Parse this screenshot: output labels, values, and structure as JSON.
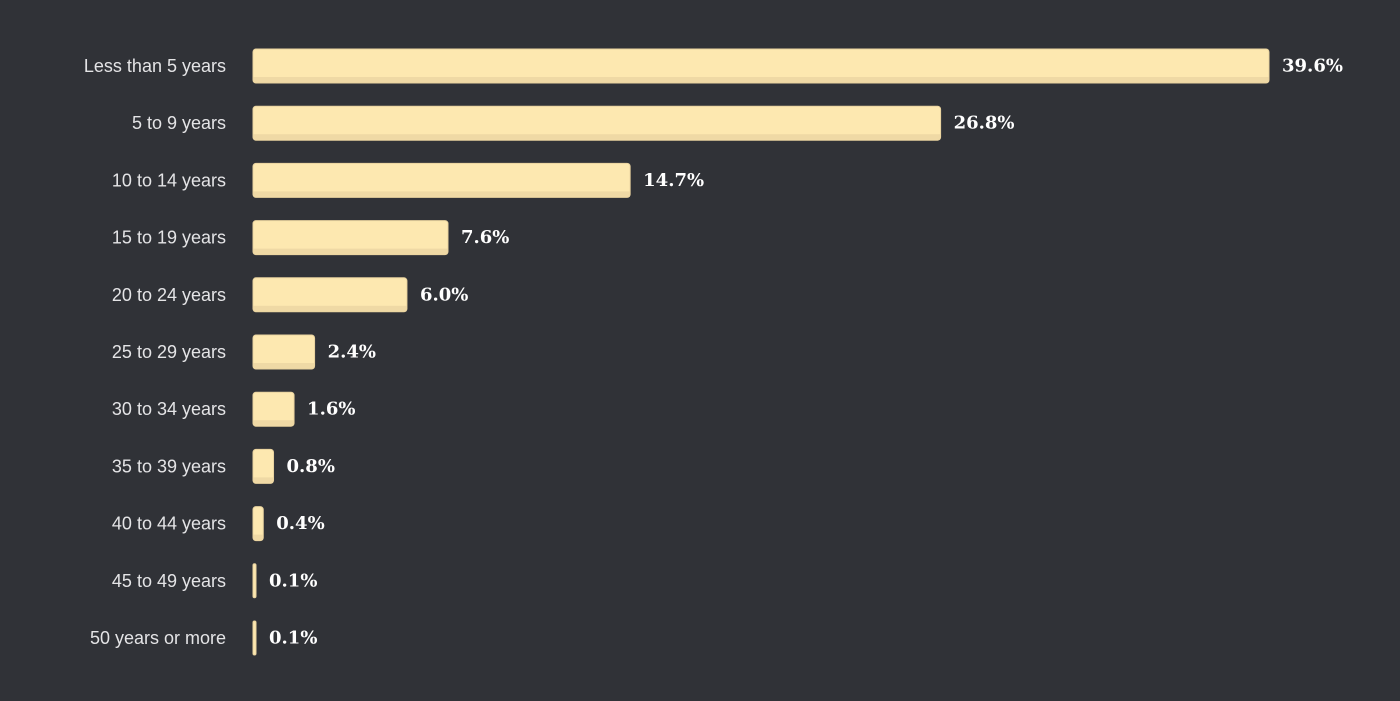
{
  "chart_data": {
    "type": "bar",
    "orientation": "horizontal",
    "title": "",
    "xlabel": "",
    "ylabel": "",
    "categories": [
      "Less than 5 years",
      "5 to 9 years",
      "10 to 14 years",
      "15 to 19 years",
      "20 to 24 years",
      "25 to 29 years",
      "30 to 34 years",
      "35 to 39 years",
      "40 to 44 years",
      "45 to 49 years",
      "50 years or more"
    ],
    "values": [
      39.6,
      26.8,
      14.7,
      7.6,
      6.0,
      2.4,
      1.6,
      0.8,
      0.4,
      0.1,
      0.1
    ],
    "value_labels": [
      "39.6%",
      "26.8%",
      "14.7%",
      "7.6%",
      "6.0%",
      "2.4%",
      "1.6%",
      "0.8%",
      "0.4%",
      "0.1%",
      "0.1%"
    ],
    "unit": "%",
    "xlim": [
      0,
      39.6
    ],
    "grid": false,
    "legend": "none",
    "colors": {
      "background": "#303237",
      "bar": "#fde8b0",
      "bar_shade": "#efd9a5",
      "bar_edge": "#e9d39f",
      "category_text": "#e4e4e6",
      "value_text": "#ffffff"
    }
  }
}
